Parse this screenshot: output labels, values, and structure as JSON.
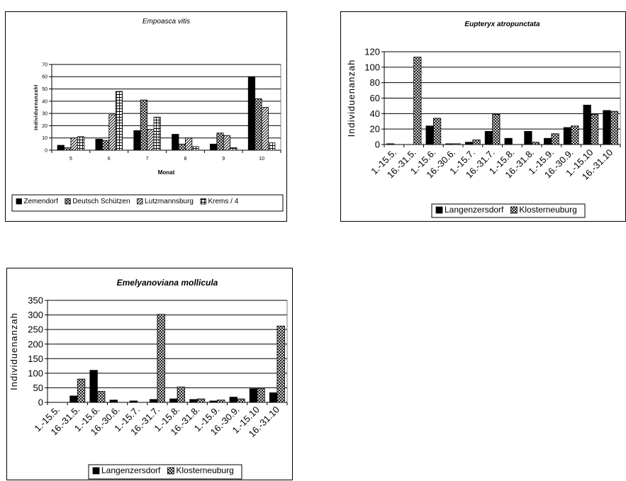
{
  "patterns": {
    "black": "#000000",
    "cross": "cross-hatch",
    "diag": "diagonal-hatch",
    "grid": "grid-hatch"
  },
  "chart_data": [
    {
      "type": "bar",
      "title": "Empoasca vitis",
      "xlabel": "Monat",
      "ylabel": "Individuenanzahl",
      "categories": [
        "5",
        "6",
        "7",
        "8",
        "9",
        "10"
      ],
      "ylim": [
        0,
        70
      ],
      "yticks": [
        "0",
        "10",
        "20",
        "30",
        "40",
        "50",
        "60",
        "70"
      ],
      "grid": true,
      "legend_position": "bottom",
      "series": [
        {
          "name": "Zemendorf",
          "pattern": "black",
          "values": [
            4,
            9,
            16,
            13,
            5,
            60
          ]
        },
        {
          "name": "Deutsch Schützen",
          "pattern": "cross",
          "values": [
            2,
            8,
            41,
            5,
            14,
            42
          ]
        },
        {
          "name": "Lutzmannsburg",
          "pattern": "diag",
          "values": [
            10,
            29,
            17,
            10,
            12,
            35
          ]
        },
        {
          "name": "Krems / 4",
          "pattern": "grid",
          "values": [
            11,
            48,
            27,
            3,
            2,
            6
          ]
        }
      ]
    },
    {
      "type": "bar",
      "title": "Eupteryx atropunctata",
      "xlabel": "",
      "ylabel": "Individuenanzah",
      "categories": [
        "1.-15.5.",
        "16.-31.5.",
        "1.-15.6.",
        "16.-30.6.",
        "1.-15.7.",
        "16.-31.7.",
        "1.-15.8.",
        "16.-31.8.",
        "1.-15.9.",
        "16.-30.9.",
        "1.-15.10",
        "16.-31.10"
      ],
      "ylim": [
        0,
        120
      ],
      "yticks": [
        "0",
        "20",
        "40",
        "60",
        "80",
        "100",
        "120"
      ],
      "grid": true,
      "legend_position": "bottom",
      "series": [
        {
          "name": "Langenzersdorf",
          "pattern": "black",
          "values": [
            1,
            0,
            24,
            1,
            3,
            17,
            8,
            17,
            8,
            22,
            51,
            44
          ]
        },
        {
          "name": "Klosterneuburg",
          "pattern": "cross",
          "values": [
            0,
            113,
            34,
            1,
            6,
            39,
            0,
            3,
            14,
            24,
            39,
            43
          ]
        }
      ]
    },
    {
      "type": "bar",
      "title": "Emelyanoviana mollicula",
      "xlabel": "",
      "ylabel": "Individuenanzah",
      "categories": [
        "1.-15.5.",
        "16.-31.5.",
        "1.-15.6.",
        "16.-30.6.",
        "1.-15.7.",
        "16.-31.7.",
        "1.-15.8.",
        "16.-31.8.",
        "1.-15.9.",
        "16.-30.9.",
        "1.-15.10",
        "16.-31.10"
      ],
      "ylim": [
        0,
        350
      ],
      "yticks": [
        "0",
        "50",
        "100",
        "150",
        "200",
        "250",
        "300",
        "350"
      ],
      "grid": true,
      "legend_position": "bottom",
      "series": [
        {
          "name": "Langenzersdorf",
          "pattern": "black",
          "values": [
            0,
            22,
            110,
            8,
            5,
            10,
            12,
            10,
            5,
            18,
            47,
            33
          ]
        },
        {
          "name": "Klosterneuburg",
          "pattern": "cross",
          "values": [
            0,
            80,
            38,
            0,
            0,
            302,
            53,
            12,
            8,
            12,
            47,
            262
          ]
        }
      ]
    }
  ]
}
